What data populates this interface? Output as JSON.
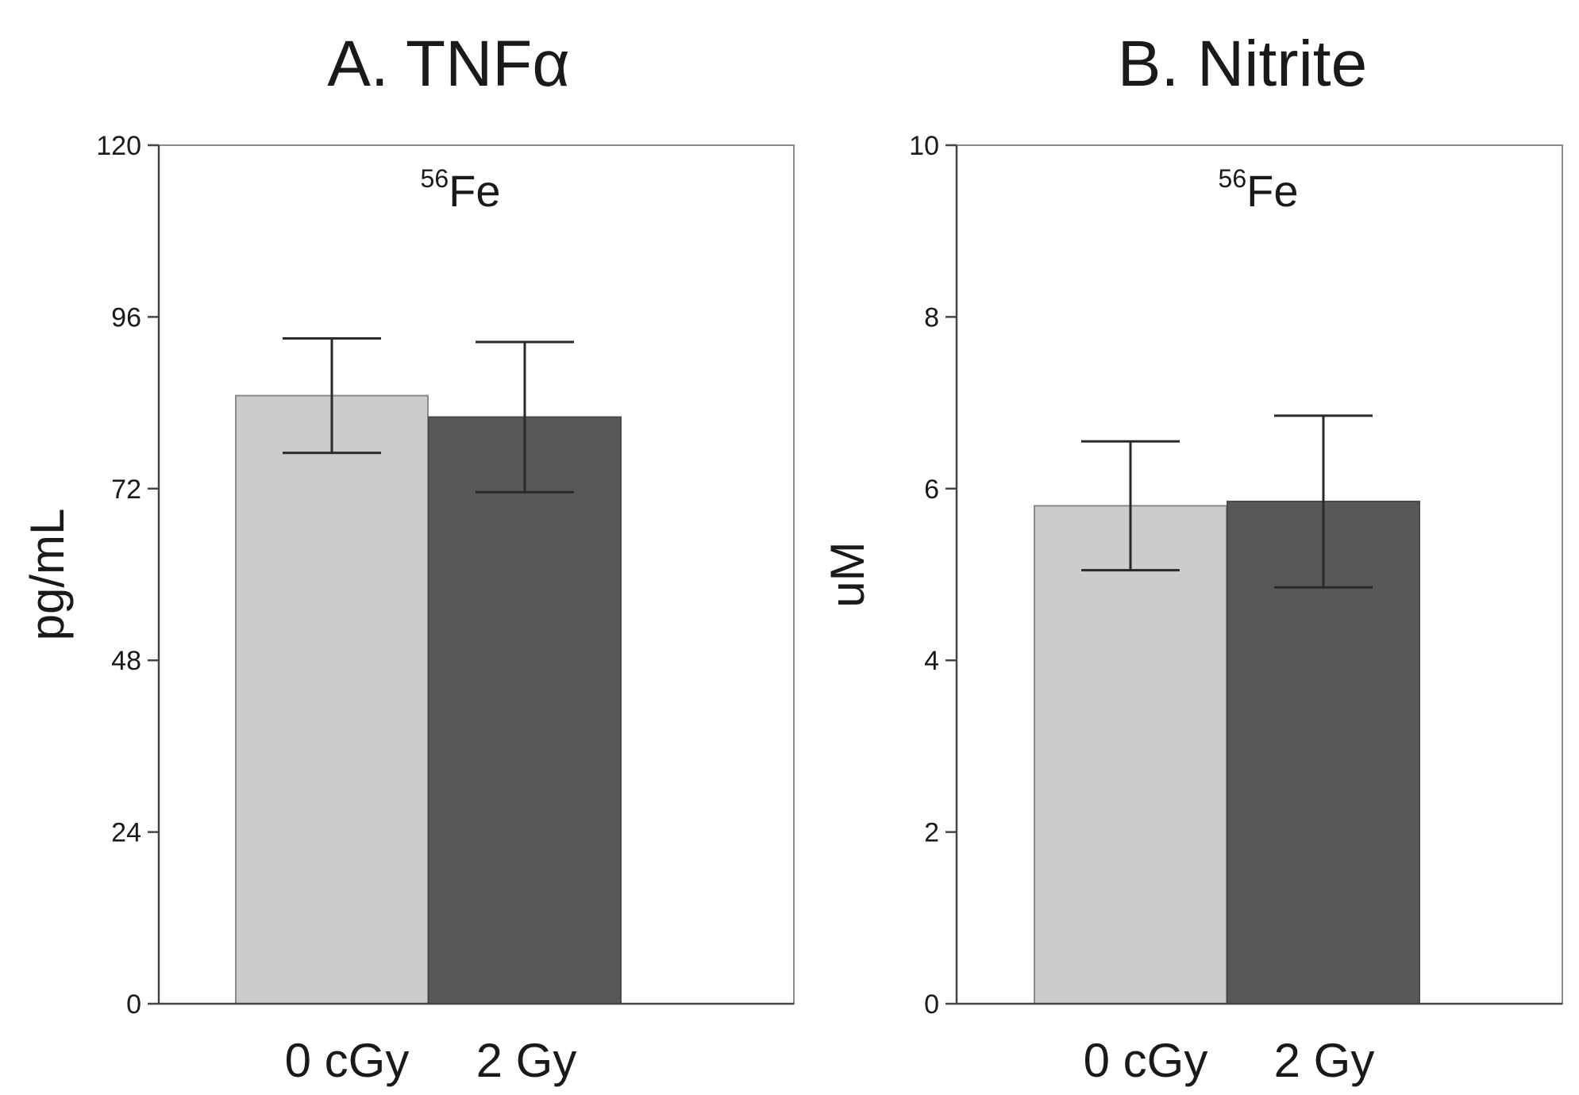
{
  "chart_data": [
    {
      "type": "bar",
      "title": "A. TNFα",
      "annotation": {
        "superscript": "56",
        "text": "Fe"
      },
      "ylabel": "pg/mL",
      "xlabel": "",
      "ylim": [
        0,
        120
      ],
      "yticks": [
        0,
        24,
        48,
        72,
        96,
        120
      ],
      "ytick_labels": [
        "0",
        "24",
        "48",
        "72",
        "96",
        "120"
      ],
      "categories": [
        "0 cGy",
        "2 Gy"
      ],
      "values": [
        85,
        82
      ],
      "errors": [
        8,
        10.5
      ],
      "colors": [
        "#cccccc",
        "#585858"
      ],
      "grid": false,
      "legend": "none"
    },
    {
      "type": "bar",
      "title": "B. Nitrite",
      "annotation": {
        "superscript": "56",
        "text": "Fe"
      },
      "ylabel": "uM",
      "xlabel": "",
      "ylim": [
        0,
        10
      ],
      "yticks": [
        0,
        2,
        4,
        6,
        8,
        10
      ],
      "ytick_labels": [
        "0",
        "2",
        "4",
        "6",
        "8",
        "10"
      ],
      "categories": [
        "0 cGy",
        "2 Gy"
      ],
      "values": [
        5.8,
        5.85
      ],
      "errors": [
        0.75,
        1.0
      ],
      "colors": [
        "#cccccc",
        "#585858"
      ],
      "grid": false,
      "legend": "none"
    }
  ]
}
